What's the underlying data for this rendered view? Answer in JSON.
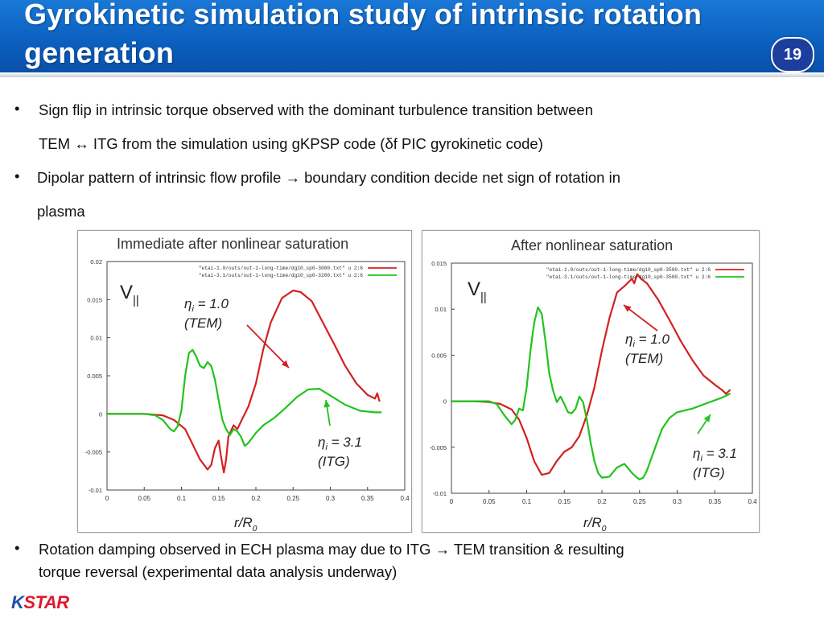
{
  "slide": {
    "title": "Gyrokinetic simulation study of intrinsic rotation generation",
    "page_number": "19",
    "bullets": [
      {
        "line1": "Sign flip in intrinsic torque observed with the dominant turbulence transition between",
        "line2": "TEM  ↔ ITG from the simulation using gKPSP code (δf PIC gyrokinetic code)"
      },
      {
        "line1": "Dipolar pattern of intrinsic flow profile → boundary condition decide net sign of rotation  in",
        "line2": "plasma"
      }
    ],
    "bottom_bullet": {
      "line1": "Rotation damping observed in ECH plasma may due to ITG → TEM transition & resulting",
      "line2": "torque reversal (experimental data analysis underway)"
    },
    "bullet_char": "•",
    "logo_text": "KSTAR",
    "accent_colors": {
      "header": "#0b5fbf",
      "tem": "#d42020",
      "itg": "#22c31c"
    }
  },
  "chart_data": [
    {
      "type": "line",
      "title": "Immediate after nonlinear saturation",
      "xlabel": "r/R",
      "xlabel_sub": "0",
      "ylabel": "V",
      "ylabel_sub": "||",
      "xlim": [
        0,
        0.4
      ],
      "ylim": [
        -0.01,
        0.02
      ],
      "x_ticks": [
        "0",
        "0.05",
        "0.1",
        "0.15",
        "0.2",
        "0.25",
        "0.3",
        "0.35",
        "0.4"
      ],
      "y_ticks": [
        "-0.01",
        "-0.005",
        "0",
        "0.005",
        "0.01",
        "0.015",
        "0.02"
      ],
      "legend": [
        "\"etai-1.0/outs/out-1-long-time/dg10_sp0-3000.txt\" u 2:6",
        "\"etai-3.1/outs/out-1-long-time/dg10_sp0-3200.txt\" u 2:6"
      ],
      "annotations": [
        {
          "eta": "η",
          "sub": "i",
          "value": "= 1.0",
          "mode": "(TEM)"
        },
        {
          "eta": "η",
          "sub": "i",
          "value": "= 3.1",
          "mode": "(ITG)"
        }
      ],
      "series": [
        {
          "name": "\"etai-1.0/outs/out-1-long-time/dg10_sp0-3000.txt\" u 2:6",
          "color": "#d42020",
          "points": [
            [
              0,
              0
            ],
            [
              0.03,
              0
            ],
            [
              0.05,
              0
            ],
            [
              0.075,
              -0.0002
            ],
            [
              0.09,
              -0.0008
            ],
            [
              0.105,
              -0.002
            ],
            [
              0.115,
              -0.004
            ],
            [
              0.125,
              -0.006
            ],
            [
              0.135,
              -0.0073
            ],
            [
              0.14,
              -0.0067
            ],
            [
              0.145,
              -0.0045
            ],
            [
              0.15,
              -0.0035
            ],
            [
              0.153,
              -0.0055
            ],
            [
              0.157,
              -0.0077
            ],
            [
              0.16,
              -0.006
            ],
            [
              0.163,
              -0.003
            ],
            [
              0.17,
              -0.0015
            ],
            [
              0.175,
              -0.002
            ],
            [
              0.18,
              -0.001
            ],
            [
              0.19,
              0.001
            ],
            [
              0.2,
              0.004
            ],
            [
              0.21,
              0.0085
            ],
            [
              0.22,
              0.012
            ],
            [
              0.235,
              0.0152
            ],
            [
              0.25,
              0.0162
            ],
            [
              0.26,
              0.016
            ],
            [
              0.275,
              0.0148
            ],
            [
              0.29,
              0.012
            ],
            [
              0.305,
              0.0092
            ],
            [
              0.32,
              0.0063
            ],
            [
              0.335,
              0.004
            ],
            [
              0.35,
              0.0025
            ],
            [
              0.36,
              0.002
            ],
            [
              0.363,
              0.0027
            ],
            [
              0.366,
              0.0017
            ]
          ]
        },
        {
          "name": "\"etai-3.1/outs/out-1-long-time/dg10_sp0-3200.txt\" u 2:6",
          "color": "#22c31c",
          "points": [
            [
              0,
              0
            ],
            [
              0.03,
              0
            ],
            [
              0.05,
              0
            ],
            [
              0.065,
              -0.0002
            ],
            [
              0.075,
              -0.0008
            ],
            [
              0.085,
              -0.002
            ],
            [
              0.09,
              -0.0023
            ],
            [
              0.095,
              -0.0016
            ],
            [
              0.1,
              0.0005
            ],
            [
              0.105,
              0.005
            ],
            [
              0.11,
              0.008
            ],
            [
              0.115,
              0.0084
            ],
            [
              0.12,
              0.0075
            ],
            [
              0.125,
              0.0063
            ],
            [
              0.13,
              0.006
            ],
            [
              0.135,
              0.0068
            ],
            [
              0.14,
              0.0063
            ],
            [
              0.145,
              0.0045
            ],
            [
              0.15,
              0.0018
            ],
            [
              0.155,
              -0.0008
            ],
            [
              0.16,
              -0.002
            ],
            [
              0.165,
              -0.0028
            ],
            [
              0.17,
              -0.002
            ],
            [
              0.175,
              -0.0023
            ],
            [
              0.18,
              -0.003
            ],
            [
              0.185,
              -0.0042
            ],
            [
              0.19,
              -0.0038
            ],
            [
              0.2,
              -0.0025
            ],
            [
              0.21,
              -0.0015
            ],
            [
              0.225,
              -0.0005
            ],
            [
              0.24,
              0.0008
            ],
            [
              0.255,
              0.0022
            ],
            [
              0.27,
              0.0032
            ],
            [
              0.285,
              0.0033
            ],
            [
              0.3,
              0.0024
            ],
            [
              0.32,
              0.0012
            ],
            [
              0.34,
              0.0004
            ],
            [
              0.36,
              0.0002
            ],
            [
              0.368,
              0.0002
            ]
          ]
        }
      ]
    },
    {
      "type": "line",
      "title": "After nonlinear saturation",
      "xlabel": "r/R",
      "xlabel_sub": "0",
      "ylabel": "V",
      "ylabel_sub": "||",
      "xlim": [
        0,
        0.4
      ],
      "ylim": [
        -0.01,
        0.015
      ],
      "x_ticks": [
        "0",
        "0.05",
        "0.1",
        "0.15",
        "0.2",
        "0.25",
        "0.3",
        "0.35",
        "0.4"
      ],
      "y_ticks": [
        "-0.01",
        "-0.005",
        "0",
        "0.005",
        "0.01",
        "0.015"
      ],
      "legend": [
        "\"etai-1.0/outs/out-1-long-time/dg10_sp0-3500.txt\" u 2:6",
        "\"etai-3.1/outs/out-1-long-time/dg10_sp0-3500.txt\" u 2:6"
      ],
      "annotations": [
        {
          "eta": "η",
          "sub": "i",
          "value": "= 1.0",
          "mode": "(TEM)"
        },
        {
          "eta": "η",
          "sub": "i",
          "value": "= 3.1",
          "mode": "(ITG)"
        }
      ],
      "series": [
        {
          "name": "\"etai-1.0/outs/out-1-long-time/dg10_sp0-3500.txt\" u 2:6",
          "color": "#d42020",
          "points": [
            [
              0,
              0
            ],
            [
              0.03,
              0
            ],
            [
              0.05,
              -0.0001
            ],
            [
              0.065,
              -0.0003
            ],
            [
              0.08,
              -0.0009
            ],
            [
              0.09,
              -0.002
            ],
            [
              0.1,
              -0.004
            ],
            [
              0.11,
              -0.0065
            ],
            [
              0.12,
              -0.008
            ],
            [
              0.13,
              -0.0078
            ],
            [
              0.14,
              -0.0065
            ],
            [
              0.15,
              -0.0055
            ],
            [
              0.16,
              -0.005
            ],
            [
              0.17,
              -0.0038
            ],
            [
              0.18,
              -0.0015
            ],
            [
              0.19,
              0.0015
            ],
            [
              0.2,
              0.0055
            ],
            [
              0.21,
              0.009
            ],
            [
              0.22,
              0.0118
            ],
            [
              0.23,
              0.0125
            ],
            [
              0.24,
              0.0133
            ],
            [
              0.243,
              0.0128
            ],
            [
              0.247,
              0.0138
            ],
            [
              0.252,
              0.0133
            ],
            [
              0.26,
              0.0128
            ],
            [
              0.275,
              0.011
            ],
            [
              0.29,
              0.0088
            ],
            [
              0.305,
              0.0065
            ],
            [
              0.32,
              0.0045
            ],
            [
              0.335,
              0.0028
            ],
            [
              0.35,
              0.0018
            ],
            [
              0.36,
              0.0012
            ],
            [
              0.365,
              0.0008
            ],
            [
              0.37,
              0.0012
            ]
          ]
        },
        {
          "name": "\"etai-3.1/outs/out-1-long-time/dg10_sp0-3500.txt\" u 2:6",
          "color": "#22c31c",
          "points": [
            [
              0,
              0
            ],
            [
              0.03,
              0
            ],
            [
              0.05,
              0
            ],
            [
              0.06,
              -0.0003
            ],
            [
              0.07,
              -0.0015
            ],
            [
              0.08,
              -0.0025
            ],
            [
              0.085,
              -0.002
            ],
            [
              0.09,
              -0.0008
            ],
            [
              0.095,
              -0.001
            ],
            [
              0.1,
              0.0015
            ],
            [
              0.105,
              0.0055
            ],
            [
              0.11,
              0.0085
            ],
            [
              0.115,
              0.0102
            ],
            [
              0.12,
              0.0095
            ],
            [
              0.125,
              0.0065
            ],
            [
              0.13,
              0.003
            ],
            [
              0.135,
              0.0012
            ],
            [
              0.14,
              -0.0001
            ],
            [
              0.145,
              0.0005
            ],
            [
              0.15,
              -0.0003
            ],
            [
              0.155,
              -0.0012
            ],
            [
              0.16,
              -0.0013
            ],
            [
              0.165,
              -0.0008
            ],
            [
              0.17,
              0.0005
            ],
            [
              0.175,
              -0.0001
            ],
            [
              0.18,
              -0.002
            ],
            [
              0.185,
              -0.0045
            ],
            [
              0.19,
              -0.0065
            ],
            [
              0.195,
              -0.0078
            ],
            [
              0.2,
              -0.0083
            ],
            [
              0.21,
              -0.0082
            ],
            [
              0.22,
              -0.0072
            ],
            [
              0.23,
              -0.0068
            ],
            [
              0.24,
              -0.0078
            ],
            [
              0.245,
              -0.0082
            ],
            [
              0.25,
              -0.0085
            ],
            [
              0.255,
              -0.0083
            ],
            [
              0.26,
              -0.0075
            ],
            [
              0.27,
              -0.0052
            ],
            [
              0.28,
              -0.003
            ],
            [
              0.29,
              -0.0018
            ],
            [
              0.3,
              -0.0012
            ],
            [
              0.32,
              -0.0008
            ],
            [
              0.34,
              -0.0002
            ],
            [
              0.36,
              0.0004
            ],
            [
              0.37,
              0.0008
            ]
          ]
        }
      ]
    }
  ]
}
